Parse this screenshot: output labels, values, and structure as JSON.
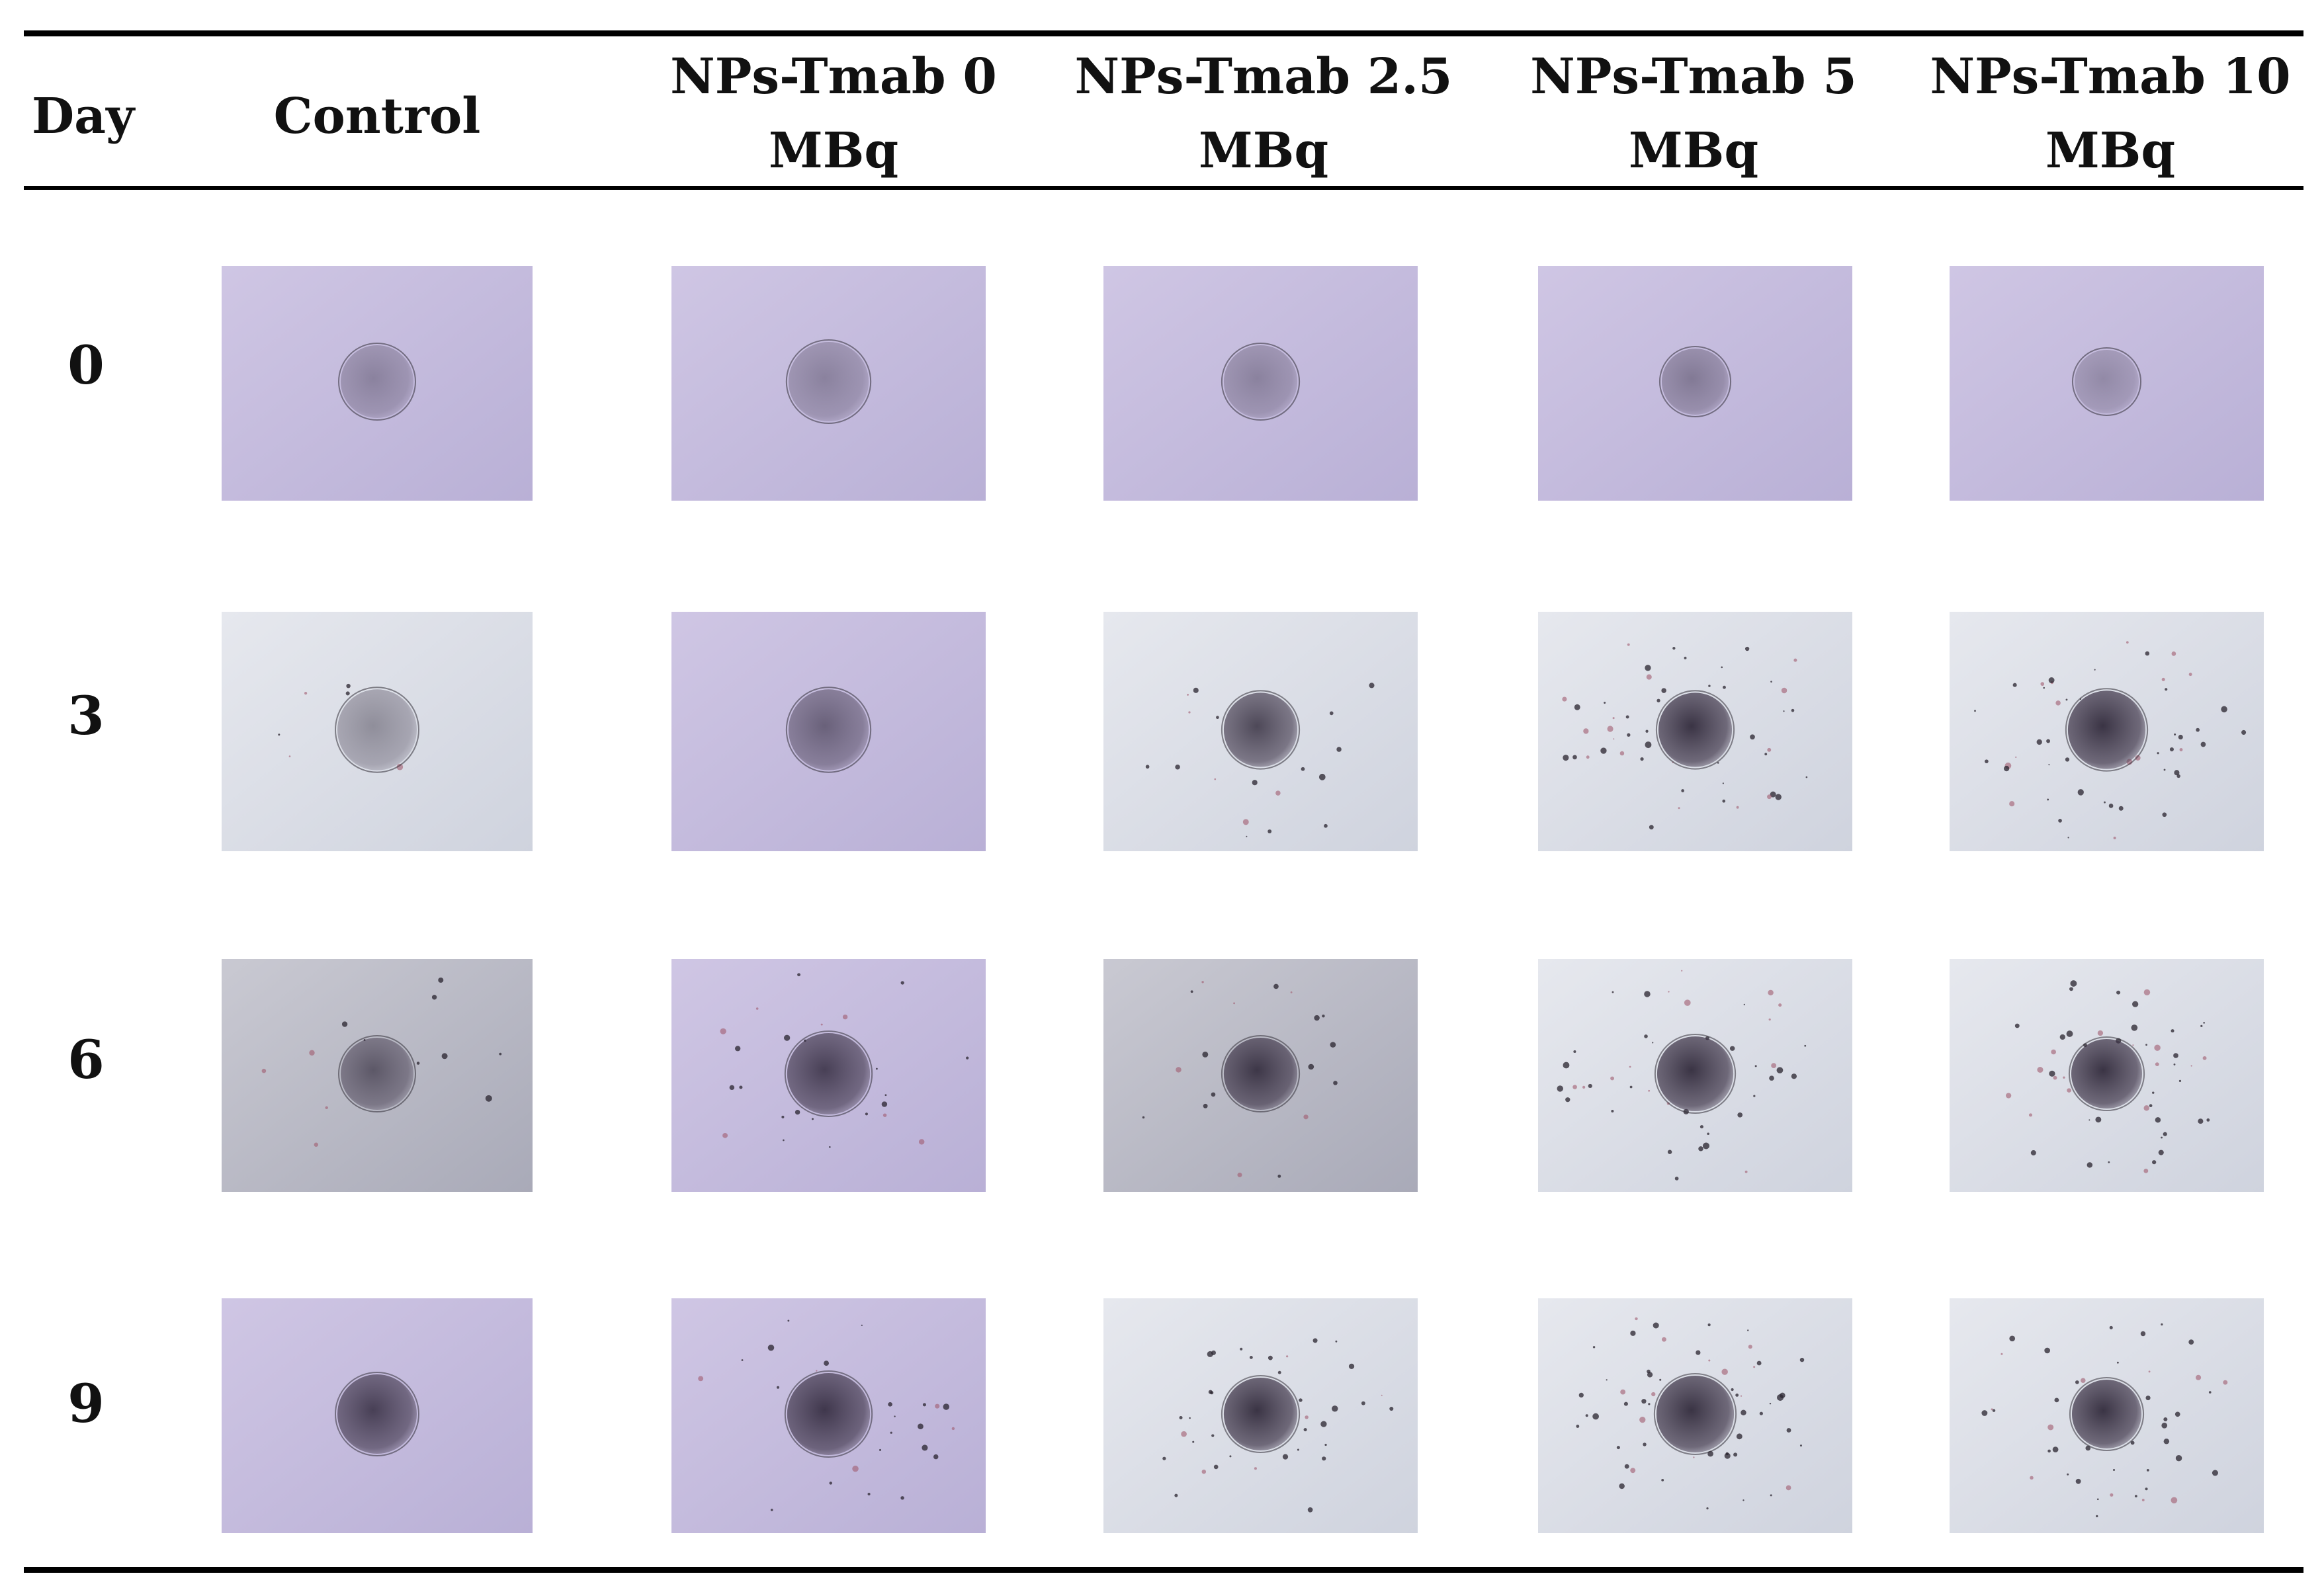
{
  "table": {
    "headers": {
      "day": "Day",
      "control": "Control",
      "groups": [
        {
          "line1": "NPs-Tmab 0",
          "line2": "MBq"
        },
        {
          "line1": "NPs-Tmab 2.5",
          "line2": "MBq"
        },
        {
          "line1": "NPs-Tmab 5",
          "line2": "MBq"
        },
        {
          "line1": "NPs-Tmab 10",
          "line2": "MBq"
        }
      ]
    },
    "rows": [
      {
        "day": "0"
      },
      {
        "day": "3"
      },
      {
        "day": "6"
      },
      {
        "day": "9"
      }
    ]
  },
  "colors": {
    "rule": "#000000",
    "background_purple": "#c9c0e0",
    "background_light": "#dfe2ea",
    "spheroid_dark": "#2a2230"
  }
}
